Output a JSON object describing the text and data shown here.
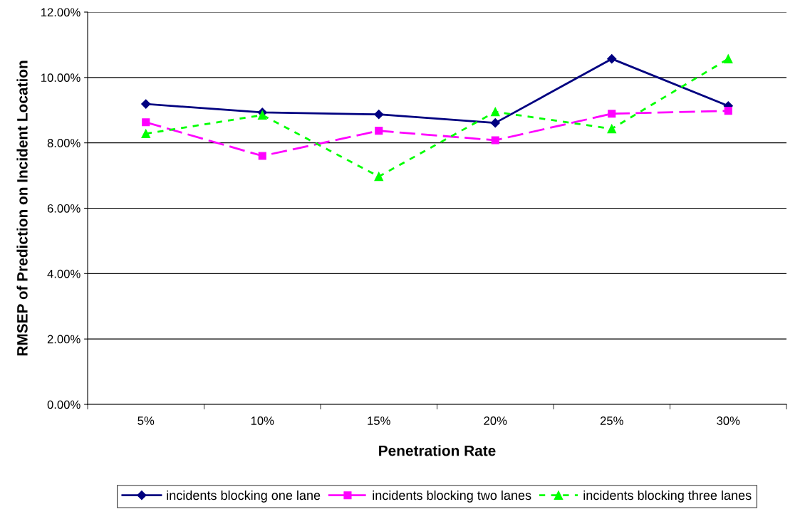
{
  "chart_data": {
    "type": "line",
    "xlabel": "Penetration Rate",
    "ylabel": "RMSEP of Prediction on Incident Location",
    "categories": [
      "5%",
      "10%",
      "15%",
      "20%",
      "25%",
      "30%"
    ],
    "series": [
      {
        "name": "incidents blocking one lane",
        "color": "#000080",
        "marker": "diamond",
        "line_style": "solid",
        "values": [
          9.19,
          8.93,
          8.87,
          8.61,
          10.57,
          9.13
        ]
      },
      {
        "name": "incidents blocking two lanes",
        "color": "#ff00ff",
        "marker": "square",
        "line_style": "dashed",
        "values": [
          8.63,
          7.6,
          8.37,
          8.08,
          8.89,
          8.98
        ]
      },
      {
        "name": "incidents blocking three lanes",
        "color": "#00ff00",
        "marker": "triangle",
        "line_style": "dotted",
        "values": [
          8.28,
          8.85,
          6.97,
          8.95,
          8.43,
          10.57
        ]
      }
    ],
    "ylim": [
      0,
      12
    ],
    "yticks": [
      {
        "value": 0,
        "label": "0.00%"
      },
      {
        "value": 2,
        "label": "2.00%"
      },
      {
        "value": 4,
        "label": "4.00%"
      },
      {
        "value": 6,
        "label": "6.00%"
      },
      {
        "value": 8,
        "label": "8.00%"
      },
      {
        "value": 10,
        "label": "10.00%"
      },
      {
        "value": 12,
        "label": "12.00%"
      }
    ],
    "grid": "y",
    "legend": "bottom"
  }
}
